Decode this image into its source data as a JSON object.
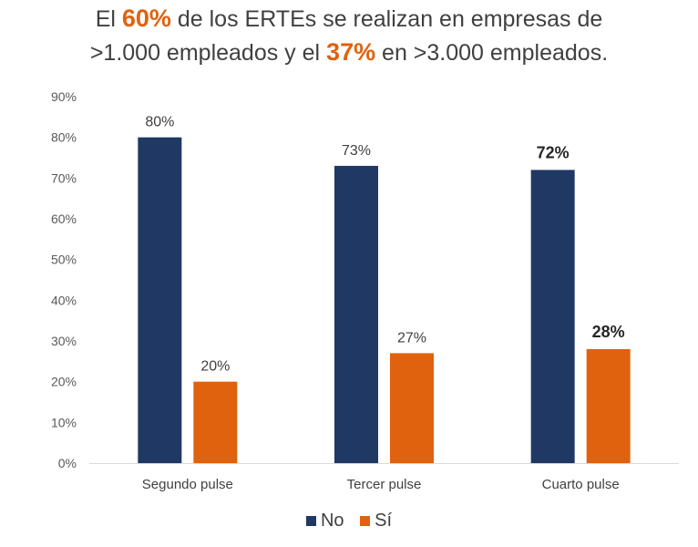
{
  "title": {
    "line1_pre": "El ",
    "line1_hl": "60%",
    "line1_post": " de los ERTEs se realizan en empresas de",
    "line2_pre": ">1.000 empleados y el ",
    "line2_hl": "37%",
    "line2_post": " en >3.000 empleados."
  },
  "colors": {
    "No": "#203864",
    "Si": "#e0620e",
    "highlight": "#e0620e"
  },
  "chart_data": {
    "type": "bar",
    "title": "El 60% de los ERTEs se realizan en empresas de >1.000 empleados y el 37% en >3.000 empleados.",
    "categories": [
      "Segundo pulse",
      "Tercer pulse",
      "Cuarto pulse"
    ],
    "series": [
      {
        "name": "No",
        "values": [
          80,
          73,
          72
        ],
        "labels": [
          "80%",
          "73%",
          "72%"
        ]
      },
      {
        "name": "Sí",
        "values": [
          20,
          27,
          28
        ],
        "labels": [
          "20%",
          "27%",
          "28%"
        ]
      }
    ],
    "bold_labels": [
      false,
      false,
      true
    ],
    "ylim": [
      0,
      90
    ],
    "yticks": [
      "0%",
      "10%",
      "20%",
      "30%",
      "40%",
      "50%",
      "60%",
      "70%",
      "80%",
      "90%"
    ],
    "grid": false,
    "legend": "bottom"
  }
}
